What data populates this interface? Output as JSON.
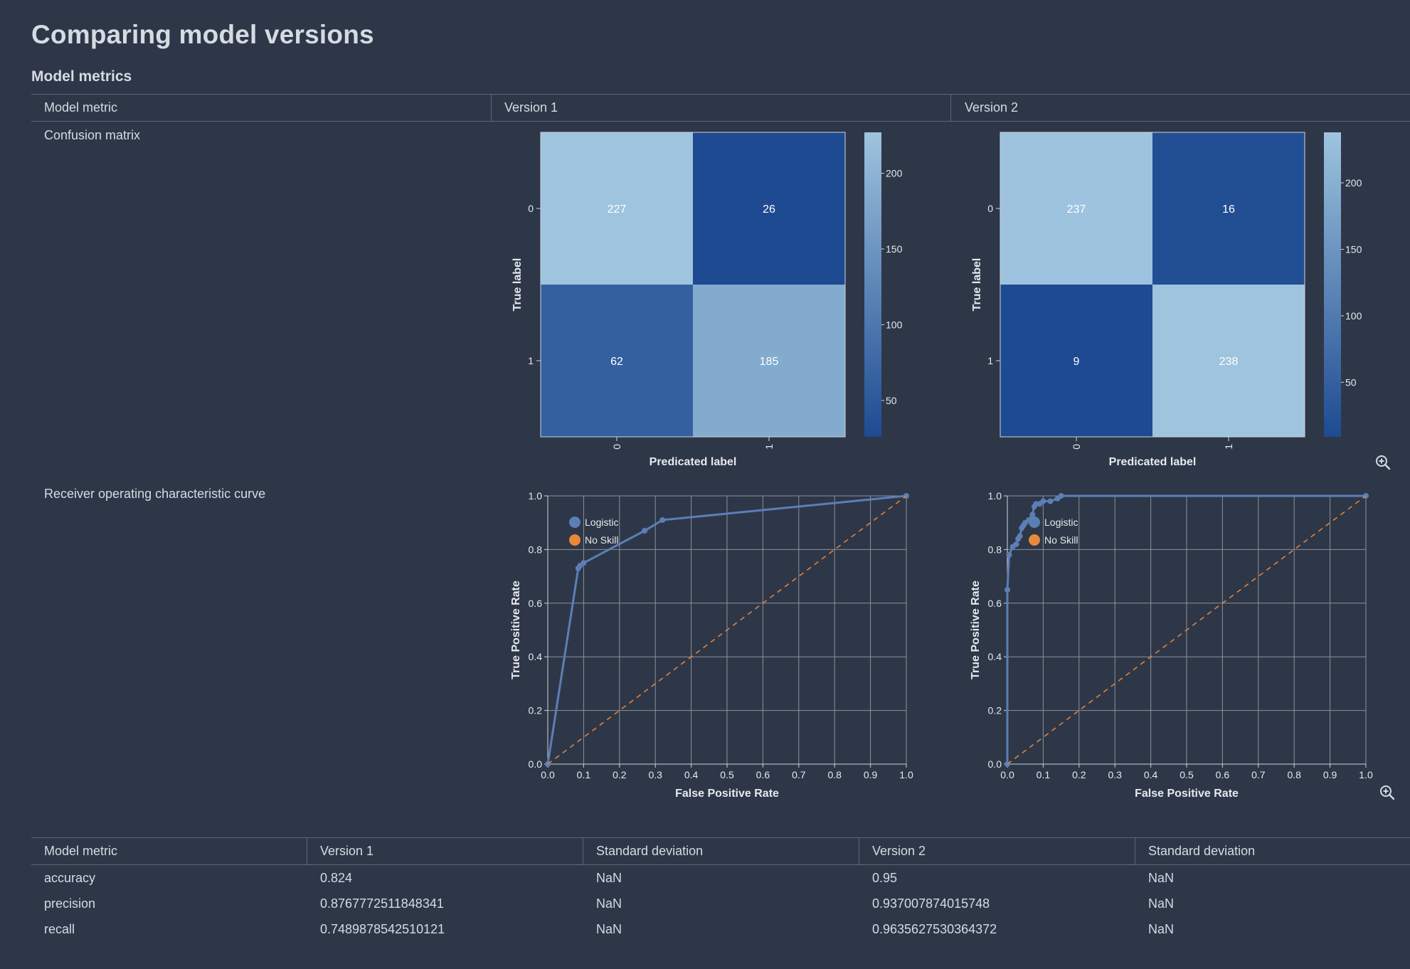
{
  "page": {
    "title": "Comparing model versions",
    "section_title": "Model metrics"
  },
  "top_table": {
    "headers": [
      "Model metric",
      "Version 1",
      "Version 2"
    ],
    "rows": [
      {
        "label": "Confusion matrix"
      },
      {
        "label": "Receiver operating characteristic curve"
      }
    ]
  },
  "bottom_table": {
    "headers": [
      "Model metric",
      "Version 1",
      "Standard deviation",
      "Version 2",
      "Standard deviation"
    ],
    "rows": [
      [
        "accuracy",
        "0.824",
        "NaN",
        "0.95",
        "NaN"
      ],
      [
        "precision",
        "0.8767772511848341",
        "NaN",
        "0.937007874015748",
        "NaN"
      ],
      [
        "recall",
        "0.7489878542510121",
        "NaN",
        "0.9635627530364372",
        "NaN"
      ]
    ]
  },
  "icons": {
    "zoom": "zoom-in-icon"
  },
  "colors": {
    "background": "#2e3748",
    "text": "#d5dbe3",
    "logistic": "#5b7fb5",
    "no_skill": "#e8883a",
    "grid": "#8c929b"
  },
  "chart_data": [
    {
      "type": "heatmap",
      "xlabel": "Predicated label",
      "ylabel": "True label",
      "x_categories": [
        "0",
        "1"
      ],
      "y_categories": [
        "0",
        "1"
      ],
      "values": [
        [
          227,
          26
        ],
        [
          62,
          185
        ]
      ],
      "colorbar_ticks": [
        "200",
        "150",
        "100",
        "50"
      ],
      "colorbar_range": [
        26,
        227
      ],
      "colorscale": "blues"
    },
    {
      "type": "heatmap",
      "xlabel": "Predicated label",
      "ylabel": "True label",
      "x_categories": [
        "0",
        "1"
      ],
      "y_categories": [
        "0",
        "1"
      ],
      "values": [
        [
          237,
          16
        ],
        [
          9,
          238
        ]
      ],
      "colorbar_ticks": [
        "200",
        "150",
        "100",
        "50"
      ],
      "colorbar_range": [
        9,
        238
      ],
      "colorscale": "blues"
    },
    {
      "type": "line",
      "xlabel": "False Positive Rate",
      "ylabel": "True Positive Rate",
      "xlim": [
        0,
        1
      ],
      "ylim": [
        0,
        1
      ],
      "x_ticks": [
        "0.0",
        "0.1",
        "0.2",
        "0.3",
        "0.4",
        "0.5",
        "0.6",
        "0.7",
        "0.8",
        "0.9",
        "1.0"
      ],
      "y_ticks": [
        "0.0",
        "0.2",
        "0.4",
        "0.6",
        "0.8",
        "1.0"
      ],
      "grid": true,
      "legend_position": "top-left",
      "series": [
        {
          "name": "Logistic",
          "points": [
            [
              0,
              0
            ],
            [
              0.085,
              0.73
            ],
            [
              0.09,
              0.74
            ],
            [
              0.1,
              0.75
            ],
            [
              0.27,
              0.87
            ],
            [
              0.32,
              0.91
            ],
            [
              1.0,
              1.0
            ]
          ]
        },
        {
          "name": "No Skill",
          "points": [
            [
              0,
              0
            ],
            [
              1,
              1
            ]
          ],
          "dashed": true
        }
      ]
    },
    {
      "type": "line",
      "xlabel": "False Positive Rate",
      "ylabel": "True Positive Rate",
      "xlim": [
        0,
        1
      ],
      "ylim": [
        0,
        1
      ],
      "x_ticks": [
        "0.0",
        "0.1",
        "0.2",
        "0.3",
        "0.4",
        "0.5",
        "0.6",
        "0.7",
        "0.8",
        "0.9",
        "1.0"
      ],
      "y_ticks": [
        "0.0",
        "0.2",
        "0.4",
        "0.6",
        "0.8",
        "1.0"
      ],
      "grid": true,
      "legend_position": "top-left",
      "series": [
        {
          "name": "Logistic",
          "points": [
            [
              0,
              0
            ],
            [
              0,
              0.65
            ],
            [
              0.005,
              0.78
            ],
            [
              0.015,
              0.81
            ],
            [
              0.025,
              0.82
            ],
            [
              0.03,
              0.84
            ],
            [
              0.035,
              0.85
            ],
            [
              0.04,
              0.88
            ],
            [
              0.045,
              0.89
            ],
            [
              0.05,
              0.9
            ],
            [
              0.06,
              0.91
            ],
            [
              0.07,
              0.93
            ],
            [
              0.075,
              0.96
            ],
            [
              0.08,
              0.97
            ],
            [
              0.09,
              0.97
            ],
            [
              0.1,
              0.98
            ],
            [
              0.12,
              0.98
            ],
            [
              0.14,
              0.99
            ],
            [
              0.15,
              1.0
            ],
            [
              1.0,
              1.0
            ]
          ]
        },
        {
          "name": "No Skill",
          "points": [
            [
              0,
              0
            ],
            [
              1,
              1
            ]
          ],
          "dashed": true
        }
      ]
    }
  ]
}
